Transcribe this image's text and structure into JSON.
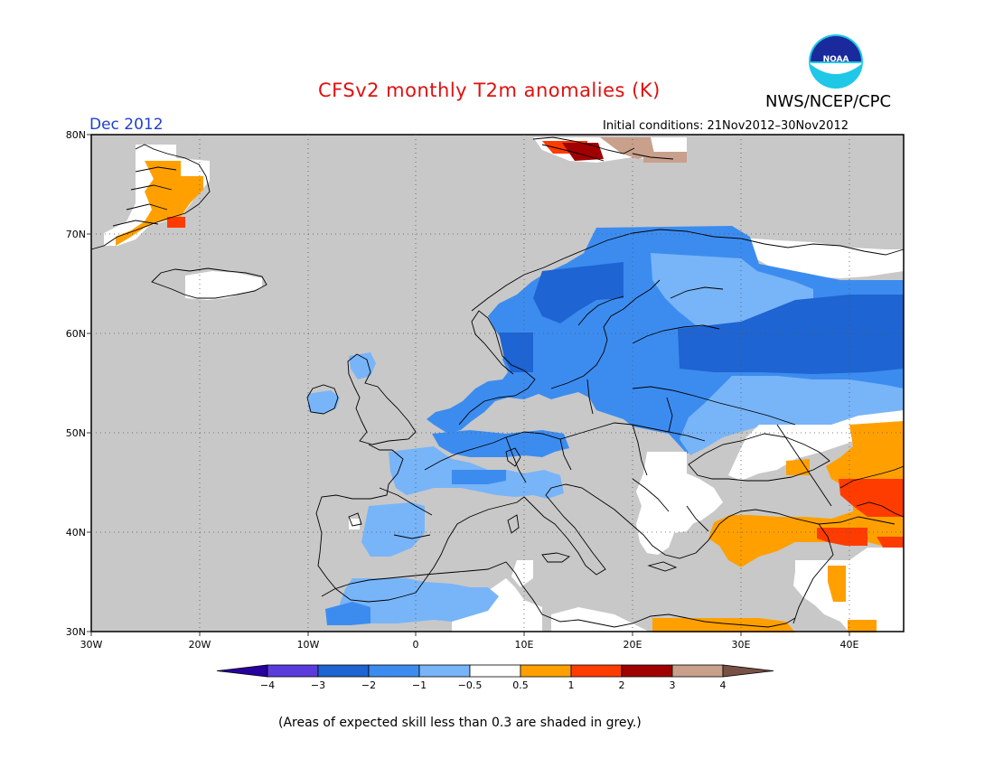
{
  "title": "CFSv2 monthly T2m anomalies (K)",
  "agency": "NWS/NCEP/CPC",
  "logo_text": "NOAA",
  "month_label": "Dec 2012",
  "initial_conditions": "Initial conditions: 21Nov2012–30Nov2012",
  "note": "(Areas of expected skill less than 0.3 are shaded in grey.)",
  "colors": {
    "grey": "#c8c8c8",
    "white": "#ffffff",
    "blue_dark": "#1e64d2",
    "blue_mid": "#3c8cf0",
    "blue_light": "#78b4f8",
    "orange": "#ffa000",
    "red": "#ff3c00",
    "darkred": "#a00000",
    "tan": "#c8a08c"
  },
  "lat_labels": [
    "80N",
    "70N",
    "60N",
    "50N",
    "40N",
    "30N"
  ],
  "lon_labels": [
    "30W",
    "20W",
    "10W",
    "0",
    "10E",
    "20E",
    "30E",
    "40E"
  ],
  "colorbar": {
    "colors": [
      "#2800a0",
      "#5a3cdc",
      "#1e64d2",
      "#3c8cf0",
      "#78b4f8",
      "#ffffff",
      "#ffa000",
      "#ff3c00",
      "#a00000",
      "#c8a08c",
      "#785046"
    ],
    "labels": [
      "−4",
      "−3",
      "−2",
      "−1",
      "−0.5",
      "0.5",
      "1",
      "2",
      "3",
      "4"
    ]
  }
}
